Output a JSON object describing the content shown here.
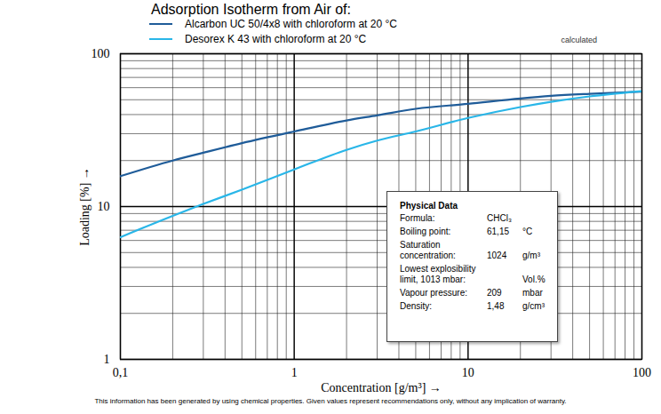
{
  "chart_data": {
    "type": "line",
    "title": "Adsorption Isotherm from Air of:",
    "annotation": "calculated",
    "caption": "This information has been generated by using chemical properties. Given values represent recommendations only, without any implication of warranty.",
    "x_label": "Concentration [g/m³]",
    "y_label": "Loading [%]",
    "x": [
      0.1,
      0.2,
      0.3,
      0.5,
      1,
      2,
      3,
      5,
      10,
      20,
      30,
      50,
      100
    ],
    "series": [
      {
        "name": "Alcarbon UC 50/4x8 with chloroform at 20 °C",
        "color": "#1f5c99",
        "values": [
          15.8,
          20,
          22.5,
          26,
          31,
          36.6,
          39.5,
          43.6,
          47,
          51,
          53,
          54.7,
          56.5
        ]
      },
      {
        "name": "Desorex K 43 with chloroform at 20 °C",
        "color": "#29b6e8",
        "values": [
          6.3,
          8.7,
          10.4,
          12.9,
          17.5,
          23.5,
          27,
          31,
          38,
          44.8,
          48.5,
          52.6,
          57
        ]
      }
    ],
    "xlim": [
      0.1,
      100
    ],
    "ylim": [
      1,
      100
    ],
    "xticks": [
      {
        "value": 0.1,
        "label": "0,1"
      },
      1,
      10,
      100
    ],
    "yticks": [
      1,
      10,
      100
    ],
    "log": true,
    "grid": true,
    "legend": "top",
    "physical_data": {
      "title": "Physical Data",
      "rows": [
        [
          "Formula:",
          "CHCl₃",
          null
        ],
        [
          "Boiling point:",
          "61,15",
          "°C"
        ],
        [
          "Saturation concentration:",
          "1024",
          "g/m³"
        ],
        [
          "Lowest explosibility limit, 1013 mbar:",
          null,
          "Vol.%"
        ],
        [
          "Vapour pressure:",
          "209",
          "mbar"
        ],
        [
          "Density:",
          "1,48",
          "g/cm³"
        ]
      ]
    }
  }
}
